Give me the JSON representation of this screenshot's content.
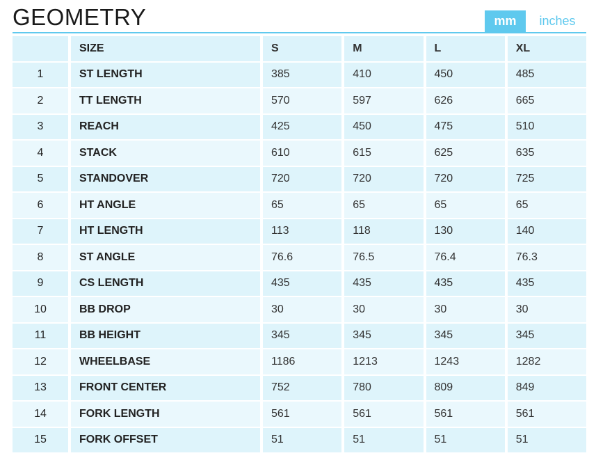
{
  "header": {
    "title": "GEOMETRY",
    "units": [
      "mm",
      "inches"
    ]
  },
  "table": {
    "columns": [
      "",
      "SIZE",
      "S",
      "M",
      "L",
      "XL"
    ],
    "rows": [
      [
        "1",
        "ST LENGTH",
        "385",
        "410",
        "450",
        "485"
      ],
      [
        "2",
        "TT LENGTH",
        "570",
        "597",
        "626",
        "665"
      ],
      [
        "3",
        "REACH",
        "425",
        "450",
        "475",
        "510"
      ],
      [
        "4",
        "STACK",
        "610",
        "615",
        "625",
        "635"
      ],
      [
        "5",
        "STANDOVER",
        "720",
        "720",
        "720",
        "725"
      ],
      [
        "6",
        "HT ANGLE",
        "65",
        "65",
        "65",
        "65"
      ],
      [
        "7",
        "HT LENGTH",
        "113",
        "118",
        "130",
        "140"
      ],
      [
        "8",
        "ST ANGLE",
        "76.6",
        "76.5",
        "76.4",
        "76.3"
      ],
      [
        "9",
        "CS LENGTH",
        "435",
        "435",
        "435",
        "435"
      ],
      [
        "10",
        "BB DROP",
        "30",
        "30",
        "30",
        "30"
      ],
      [
        "11",
        "BB HEIGHT",
        "345",
        "345",
        "345",
        "345"
      ],
      [
        "12",
        "WHEELBASE",
        "1186",
        "1213",
        "1243",
        "1282"
      ],
      [
        "13",
        "FRONT CENTER",
        "752",
        "780",
        "809",
        "849"
      ],
      [
        "14",
        "FORK LENGTH",
        "561",
        "561",
        "561",
        "561"
      ],
      [
        "15",
        "FORK OFFSET",
        "51",
        "51",
        "51",
        "51"
      ]
    ]
  }
}
